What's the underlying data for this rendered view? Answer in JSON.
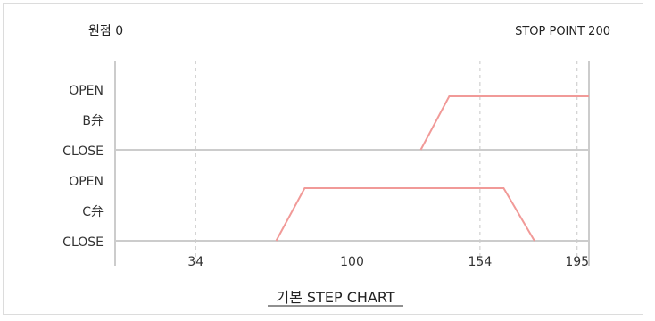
{
  "chart_data": {
    "type": "line",
    "title": "기본 STEP CHART",
    "origin_label": "원점 0",
    "stop_label": "STOP POINT 200",
    "x_ticks": [
      34,
      100,
      154,
      195
    ],
    "xlim": [
      0,
      200
    ],
    "rows": [
      {
        "name": "B弁",
        "open_label": "OPEN",
        "close_label": "CLOSE",
        "color": "#f19a98",
        "points": [
          [
            129,
            0
          ],
          [
            141,
            1
          ],
          [
            200,
            1
          ]
        ]
      },
      {
        "name": "C弁",
        "open_label": "OPEN",
        "close_label": "CLOSE",
        "color": "#f19a98",
        "points": [
          [
            68,
            0
          ],
          [
            80,
            1
          ],
          [
            164,
            1
          ],
          [
            177,
            0
          ]
        ]
      }
    ],
    "grid": true,
    "colors": {
      "axis": "#cccccc",
      "grid": "#c8c8c8",
      "line": "#f19a98"
    }
  }
}
